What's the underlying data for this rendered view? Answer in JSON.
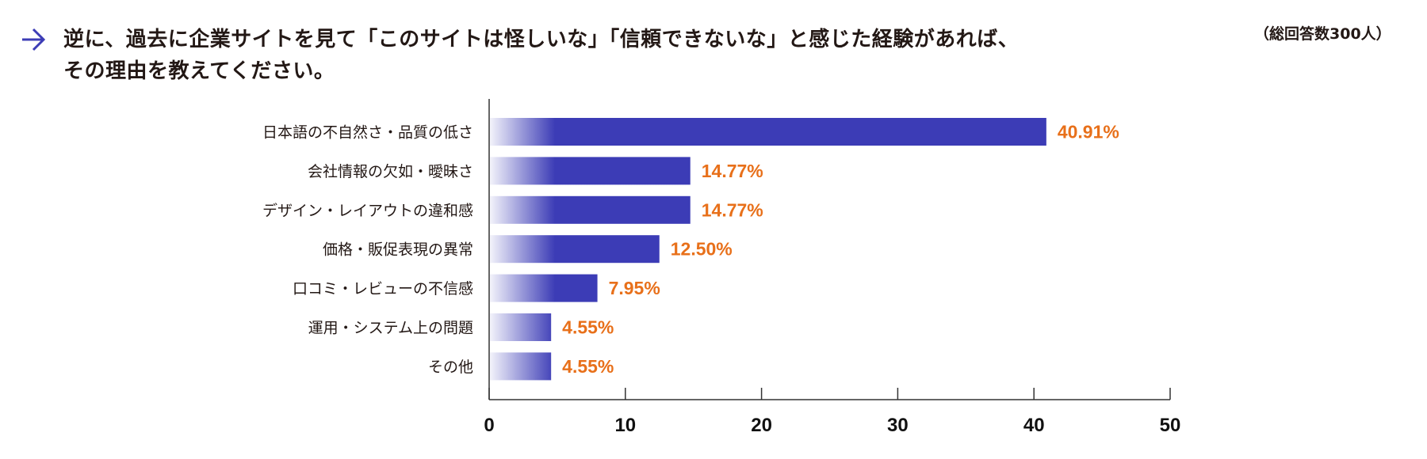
{
  "title_line1": "逆に、過去に企業サイトを見て「このサイトは怪しいな」「信頼できないな」と感じた経験があれば、",
  "title_line2": "その理由を教えてください。",
  "respondents_note": "（総回答数300人）",
  "icon": "arrow-right-icon",
  "colors": {
    "bar": "#3c3cb6",
    "value_label": "#e8701a",
    "arrow": "#3c3cb6"
  },
  "chart_data": {
    "type": "bar",
    "orientation": "horizontal",
    "categories": [
      "日本語の不自然さ・品質の低さ",
      "会社情報の欠如・曖昧さ",
      "デザイン・レイアウトの違和感",
      "価格・販促表現の異常",
      "口コミ・レビューの不信感",
      "運用・システム上の問題",
      "その他"
    ],
    "values": [
      40.91,
      14.77,
      14.77,
      12.5,
      7.95,
      4.55,
      4.55
    ],
    "value_labels": [
      "40.91%",
      "14.77%",
      "14.77%",
      "12.50%",
      "7.95%",
      "4.55%",
      "4.55%"
    ],
    "xlim": [
      0,
      50
    ],
    "xticks": [
      "0",
      "10",
      "20",
      "30",
      "40",
      "50"
    ],
    "grid": false,
    "legend": "none"
  }
}
